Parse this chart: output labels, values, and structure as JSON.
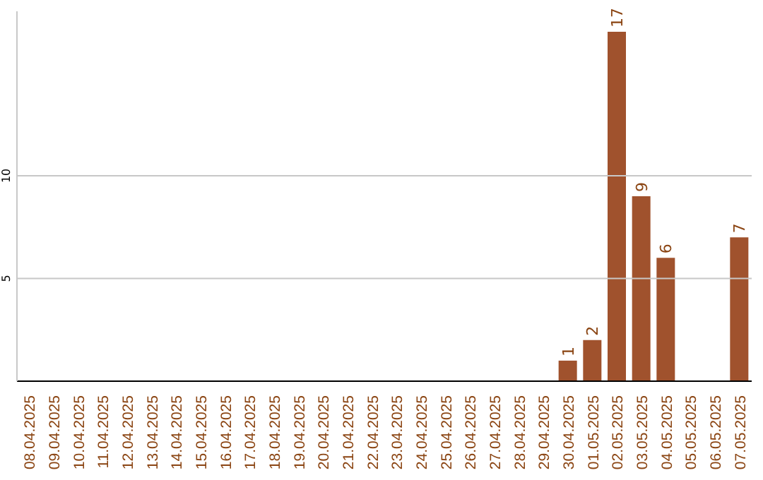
{
  "chart_data": {
    "type": "bar",
    "categories": [
      "08.04.2025",
      "09.04.2025",
      "10.04.2025",
      "11.04.2025",
      "12.04.2025",
      "13.04.2025",
      "14.04.2025",
      "15.04.2025",
      "16.04.2025",
      "17.04.2025",
      "18.04.2025",
      "19.04.2025",
      "20.04.2025",
      "21.04.2025",
      "22.04.2025",
      "23.04.2025",
      "24.04.2025",
      "25.04.2025",
      "26.04.2025",
      "27.04.2025",
      "28.04.2025",
      "29.04.2025",
      "30.04.2025",
      "01.05.2025",
      "02.05.2025",
      "03.05.2025",
      "04.05.2025",
      "05.05.2025",
      "06.05.2025",
      "07.05.2025"
    ],
    "values": [
      0,
      0,
      0,
      0,
      0,
      0,
      0,
      0,
      0,
      0,
      0,
      0,
      0,
      0,
      0,
      0,
      0,
      0,
      0,
      0,
      0,
      0,
      1,
      2,
      17,
      9,
      6,
      0,
      0,
      7
    ],
    "value_labels": [
      null,
      null,
      null,
      null,
      null,
      null,
      null,
      null,
      null,
      null,
      null,
      null,
      null,
      null,
      null,
      null,
      null,
      null,
      null,
      null,
      null,
      null,
      "1",
      "2",
      "17",
      "9",
      "6",
      null,
      null,
      "7"
    ],
    "color": "#a0522d",
    "ylim": [
      0,
      18
    ],
    "yticks": [
      5,
      10
    ],
    "grid": "y"
  }
}
